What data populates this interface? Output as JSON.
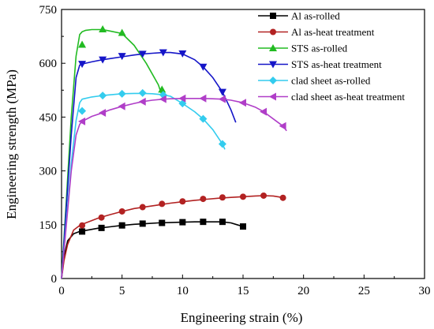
{
  "chart_data": {
    "type": "line",
    "xlabel": "Engineering strain (%)",
    "ylabel": "Engineering strength (MPa)",
    "xlim": [
      0,
      30
    ],
    "ylim": [
      0,
      750
    ],
    "xticks": [
      0,
      5,
      10,
      15,
      20,
      25,
      30
    ],
    "yticks": [
      0,
      150,
      300,
      450,
      600,
      750
    ],
    "grid": false,
    "legend_position": "top-right",
    "series": [
      {
        "name": "Al as-rolled",
        "color": "#000000",
        "marker": "square",
        "x": [
          0,
          0.2,
          0.5,
          1.0,
          1.5,
          2.0,
          3.0,
          4.0,
          5.0,
          6.0,
          7.0,
          8.0,
          9.0,
          10.0,
          11.0,
          12.0,
          13.0,
          13.5,
          14.0,
          14.5,
          15.0
        ],
        "y": [
          0,
          60,
          105,
          125,
          131,
          134,
          140,
          144,
          148,
          151,
          153,
          155,
          156,
          157,
          158,
          158,
          158,
          157,
          155,
          150,
          145
        ],
        "marker_x": [
          1.7,
          3.3,
          5.0,
          6.7,
          8.3,
          10.0,
          11.7,
          13.3,
          15.0
        ],
        "marker_y": [
          131,
          141,
          148,
          153,
          155,
          157,
          158,
          158,
          145
        ]
      },
      {
        "name": "Al as-heat treatment",
        "color": "#b22222",
        "marker": "circle",
        "x": [
          0,
          0.2,
          0.5,
          1.0,
          1.5,
          2.0,
          3.0,
          4.0,
          5.0,
          6.0,
          7.0,
          8.0,
          9.0,
          10.0,
          11.0,
          12.0,
          13.0,
          14.0,
          15.0,
          16.0,
          16.7,
          17.5,
          18.2
        ],
        "y": [
          0,
          50,
          95,
          135,
          148,
          155,
          168,
          178,
          187,
          195,
          200,
          205,
          210,
          214,
          218,
          221,
          224,
          226,
          228,
          230,
          231,
          230,
          226
        ],
        "marker_x": [
          1.7,
          3.3,
          5.0,
          6.7,
          8.3,
          10.0,
          11.7,
          13.3,
          15.0,
          16.7,
          18.3
        ],
        "marker_y": [
          148,
          170,
          187,
          199,
          208,
          215,
          222,
          226,
          228,
          231,
          225
        ]
      },
      {
        "name": "STS as-rolled",
        "color": "#22bb22",
        "marker": "triangle-up",
        "x": [
          0,
          0.4,
          0.8,
          1.2,
          1.5,
          1.7,
          2.0,
          2.5,
          3.0,
          3.4,
          4.0,
          5.0,
          6.0,
          7.0,
          7.5,
          8.0,
          8.4
        ],
        "y": [
          0,
          220,
          450,
          620,
          680,
          688,
          692,
          694,
          694,
          694,
          690,
          683,
          650,
          600,
          570,
          540,
          500
        ],
        "marker_x": [
          1.7,
          3.4,
          5.0,
          8.3
        ],
        "marker_y": [
          652,
          695,
          685,
          527
        ]
      },
      {
        "name": "STS as-heat treatment",
        "color": "#1515c8",
        "marker": "triangle-down",
        "x": [
          0,
          0.4,
          0.8,
          1.2,
          1.5,
          1.7,
          2.5,
          3.4,
          4.0,
          5.0,
          6.0,
          6.7,
          7.5,
          8.4,
          9.0,
          10.0,
          11.0,
          11.7,
          12.5,
          13.3,
          14.0,
          14.4
        ],
        "y": [
          0,
          200,
          400,
          560,
          595,
          598,
          604,
          610,
          613,
          618,
          623,
          626,
          628,
          630,
          630,
          626,
          610,
          590,
          560,
          520,
          470,
          435
        ],
        "marker_x": [
          1.7,
          3.4,
          5.0,
          6.7,
          8.4,
          10.0,
          11.7,
          13.3
        ],
        "marker_y": [
          598,
          610,
          620,
          626,
          630,
          627,
          590,
          520
        ]
      },
      {
        "name": "clad sheet as-rolled",
        "color": "#33ccee",
        "marker": "diamond",
        "x": [
          0,
          0.4,
          0.8,
          1.2,
          1.5,
          1.7,
          2.5,
          3.4,
          4.0,
          5.0,
          6.0,
          6.7,
          7.5,
          8.4,
          9.0,
          10.0,
          11.0,
          11.7,
          12.5,
          13.0,
          13.3,
          13.5
        ],
        "y": [
          0,
          160,
          320,
          440,
          490,
          500,
          506,
          510,
          512,
          515,
          516,
          516,
          515,
          512,
          508,
          488,
          465,
          445,
          415,
          390,
          375,
          360
        ],
        "marker_x": [
          1.7,
          3.4,
          5.0,
          6.7,
          8.4,
          10.0,
          11.7,
          13.3
        ],
        "marker_y": [
          467,
          510,
          515,
          517,
          512,
          488,
          445,
          375
        ]
      },
      {
        "name": "clad sheet as-heat treatment",
        "color": "#b03ec8",
        "marker": "triangle-left",
        "x": [
          0,
          0.4,
          0.8,
          1.2,
          1.5,
          1.7,
          2.5,
          3.4,
          4.0,
          5.0,
          6.0,
          6.7,
          7.5,
          8.4,
          9.0,
          10.0,
          11.0,
          11.7,
          12.5,
          13.3,
          14.0,
          15.0,
          16.0,
          16.7,
          17.5,
          18.3,
          18.6
        ],
        "y": [
          0,
          150,
          300,
          400,
          430,
          438,
          452,
          462,
          470,
          480,
          488,
          493,
          497,
          500,
          501,
          502,
          502,
          502,
          501,
          500,
          497,
          490,
          478,
          465,
          445,
          425,
          412
        ],
        "marker_x": [
          1.7,
          3.4,
          5.0,
          6.7,
          8.4,
          10.0,
          11.7,
          13.3,
          15.0,
          16.7,
          18.3
        ],
        "marker_y": [
          438,
          462,
          480,
          493,
          500,
          502,
          502,
          500,
          490,
          465,
          425
        ]
      }
    ]
  }
}
